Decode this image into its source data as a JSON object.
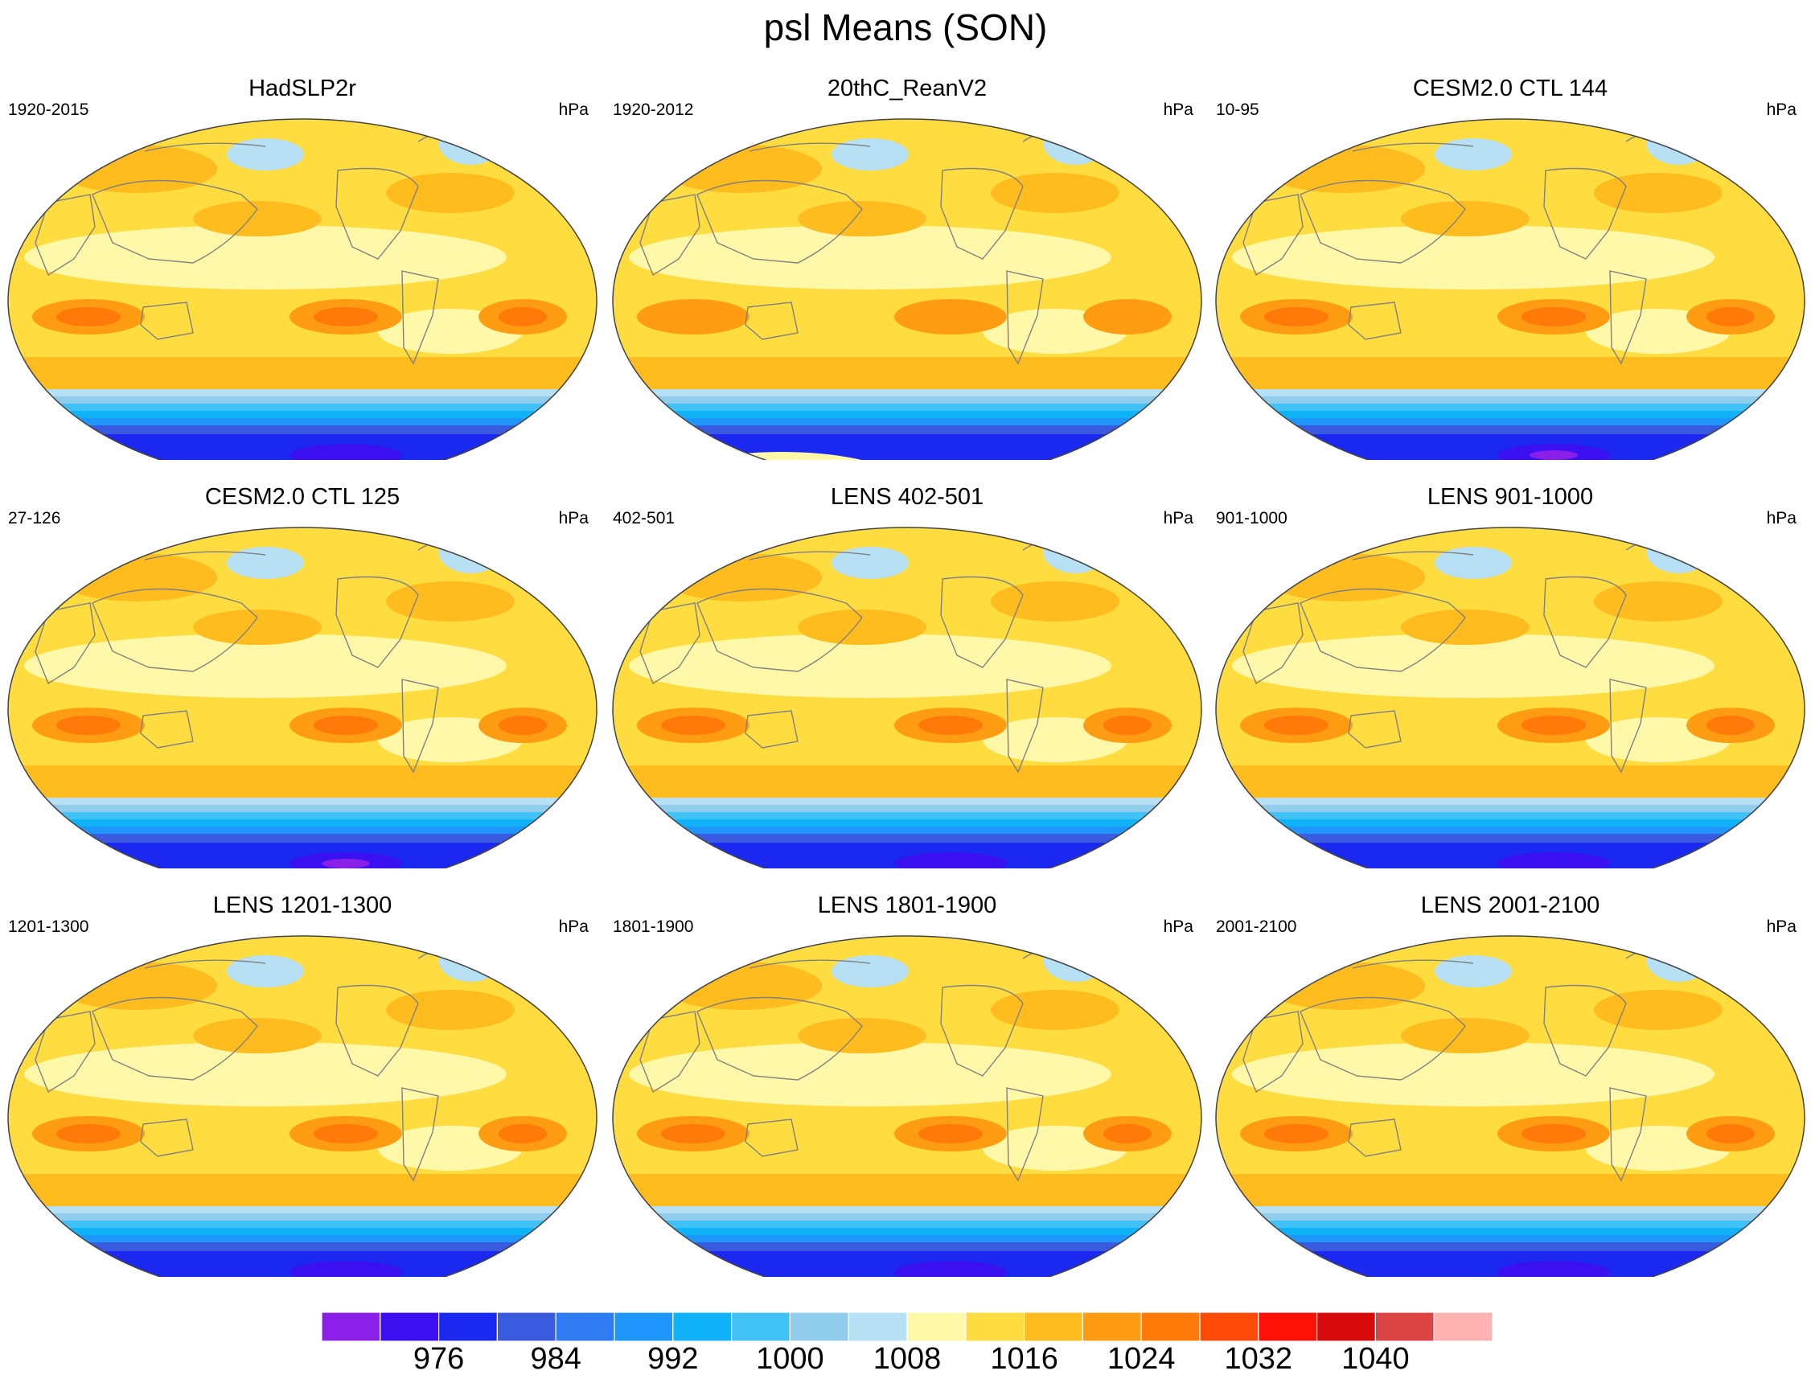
{
  "title": "psl Means (SON)",
  "panels": [
    {
      "title": "HadSLP2r",
      "period": "1920-2015",
      "units": "hPa",
      "variant": "obs_had"
    },
    {
      "title": "20thC_ReanV2",
      "period": "1920-2012",
      "units": "hPa",
      "variant": "rean"
    },
    {
      "title": "CESM2.0 CTL 144",
      "period": "10-95",
      "units": "hPa",
      "variant": "cesm"
    },
    {
      "title": "CESM2.0 CTL 125",
      "period": "27-126",
      "units": "hPa",
      "variant": "cesm"
    },
    {
      "title": "LENS 402-501",
      "period": "402-501",
      "units": "hPa",
      "variant": "lens"
    },
    {
      "title": "LENS 901-1000",
      "period": "901-1000",
      "units": "hPa",
      "variant": "lens"
    },
    {
      "title": "LENS 1201-1300",
      "period": "1201-1300",
      "units": "hPa",
      "variant": "lens"
    },
    {
      "title": "LENS 1801-1900",
      "period": "1801-1900",
      "units": "hPa",
      "variant": "lens"
    },
    {
      "title": "LENS 2001-2100",
      "period": "2001-2100",
      "units": "hPa",
      "variant": "lens"
    }
  ],
  "colorbar": {
    "units": "hPa",
    "labels": [
      "976",
      "984",
      "992",
      "1000",
      "1008",
      "1016",
      "1024",
      "1032",
      "1040"
    ],
    "colors": [
      "#8a1fe8",
      "#3a10f0",
      "#1a28f0",
      "#3a5ae0",
      "#2f7cf2",
      "#1e96fb",
      "#10b2f8",
      "#40c2f6",
      "#90cdec",
      "#b8e0f4",
      "#fff8a8",
      "#ffdc40",
      "#ffbc1e",
      "#ff9c12",
      "#ff7a08",
      "#ff4a08",
      "#ff1006",
      "#d60a0a",
      "#dc4444",
      "#ffb2b2"
    ]
  }
}
